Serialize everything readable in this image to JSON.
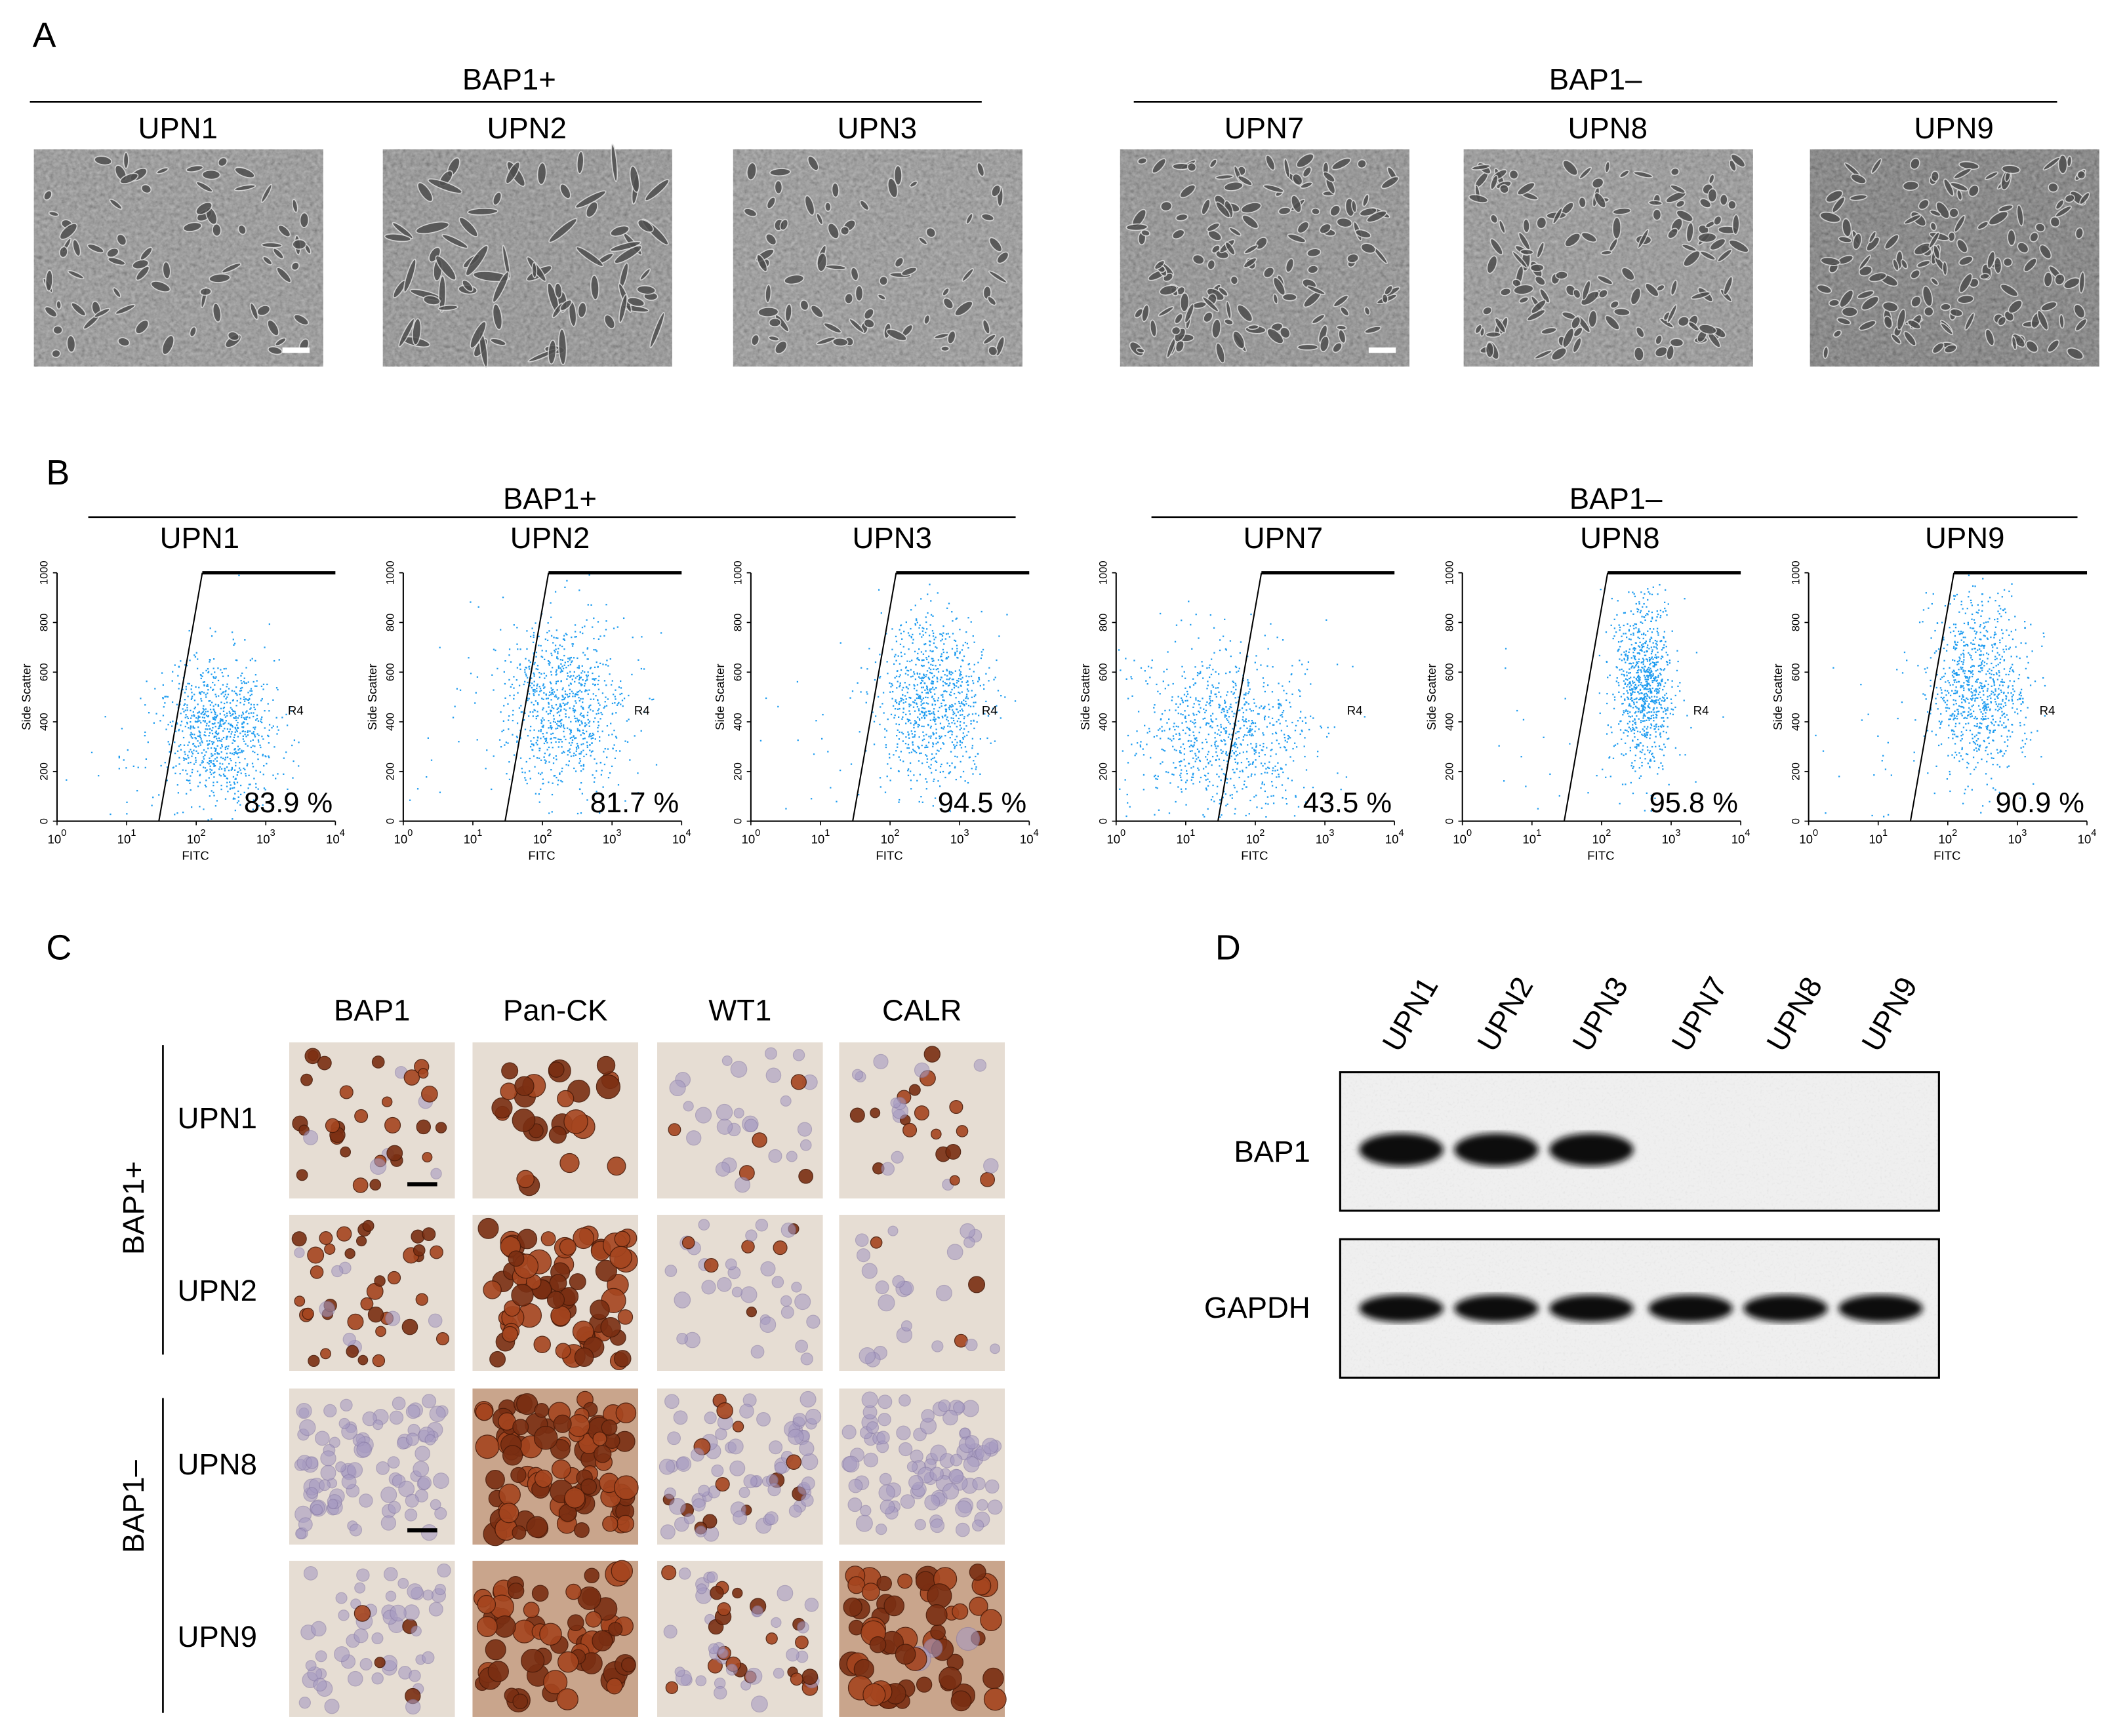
{
  "panel_a": {
    "label": "A",
    "groups": [
      {
        "title": "BAP1+",
        "samples": [
          "UPN1",
          "UPN2",
          "UPN3"
        ]
      },
      {
        "title": "BAP1–",
        "samples": [
          "UPN7",
          "UPN8",
          "UPN9"
        ]
      }
    ]
  },
  "panel_b": {
    "label": "B",
    "groups": [
      {
        "title": "BAP1+",
        "samples": [
          "UPN1",
          "UPN2",
          "UPN3"
        ]
      },
      {
        "title": "BAP1–",
        "samples": [
          "UPN7",
          "UPN8",
          "UPN9"
        ]
      }
    ],
    "y_axis_label": "Side Scatter",
    "x_axis_label": "FITC",
    "gate": "R4",
    "yticks": [
      "0",
      "200",
      "400",
      "600",
      "800",
      "1000"
    ],
    "xticks": [
      {
        "base": "10",
        "exp": "0"
      },
      {
        "base": "10",
        "exp": "1"
      },
      {
        "base": "10",
        "exp": "2"
      },
      {
        "base": "10",
        "exp": "3"
      },
      {
        "base": "10",
        "exp": "4"
      }
    ],
    "percentages": [
      "83.9 %",
      "81.7 %",
      "94.5 %",
      "43.5 %",
      "95.8 %",
      "90.9 %"
    ]
  },
  "panel_c": {
    "label": "C",
    "columns": [
      "BAP1",
      "Pan-CK",
      "WT1",
      "CALR"
    ],
    "groups": [
      {
        "title": "BAP1+",
        "samples": [
          "UPN1",
          "UPN2"
        ]
      },
      {
        "title": "BAP1–",
        "samples": [
          "UPN8",
          "UPN9"
        ]
      }
    ]
  },
  "panel_d": {
    "label": "D",
    "lanes": [
      "UPN1",
      "UPN2",
      "UPN3",
      "UPN7",
      "UPN8",
      "UPN9"
    ],
    "rows": [
      "BAP1",
      "GAPDH"
    ]
  }
}
